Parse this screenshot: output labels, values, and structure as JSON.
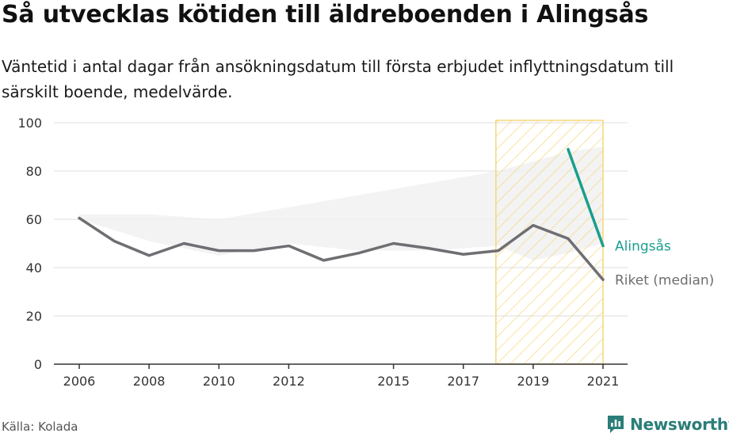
{
  "header": {
    "title": "Så utvecklas kötiden till äldreboenden i Alingsås",
    "subtitle": "Väntetid i antal dagar från ansökningsdatum till första erbjudet inflyttningsdatum till särskilt boende, medelvärde."
  },
  "footer": {
    "source": "Källa: Kolada",
    "brand": "Newsworthy"
  },
  "colors": {
    "alingsas": "#1a9e8f",
    "riket": "#6e6e73",
    "highlight": "#f5d77a",
    "range_band": "#f0f0f0",
    "grid": "#dddddd"
  },
  "chart_data": {
    "type": "line",
    "title": "Så utvecklas kötiden till äldreboenden i Alingsås",
    "xlim": [
      2006,
      2021
    ],
    "ylim": [
      0,
      100
    ],
    "yticks": [
      0,
      20,
      40,
      60,
      80,
      100
    ],
    "xticks": [
      2006,
      2008,
      2010,
      2012,
      2015,
      2017,
      2019,
      2021
    ],
    "grid": true,
    "highlight_range": [
      2018.5,
      2021
    ],
    "range_band": {
      "x": [
        2006,
        2008,
        2010,
        2012,
        2014,
        2016,
        2018,
        2019,
        2020,
        2021
      ],
      "upper": [
        62,
        62,
        60,
        65,
        70,
        75,
        80,
        84,
        88,
        90
      ],
      "lower": [
        60,
        51,
        45,
        50,
        47,
        47,
        49,
        43,
        46,
        50
      ]
    },
    "series": [
      {
        "name": "Riket (median)",
        "x": [
          2006,
          2007,
          2008,
          2009,
          2010,
          2011,
          2012,
          2013,
          2014,
          2015,
          2016,
          2017,
          2018,
          2019,
          2020,
          2021
        ],
        "values": [
          60.5,
          51,
          45,
          50,
          47,
          47,
          49,
          43,
          46,
          50,
          48,
          45.5,
          47,
          57.5,
          52,
          35
        ]
      },
      {
        "name": "Alingsås",
        "x": [
          2020,
          2021
        ],
        "values": [
          89,
          49
        ]
      }
    ]
  }
}
